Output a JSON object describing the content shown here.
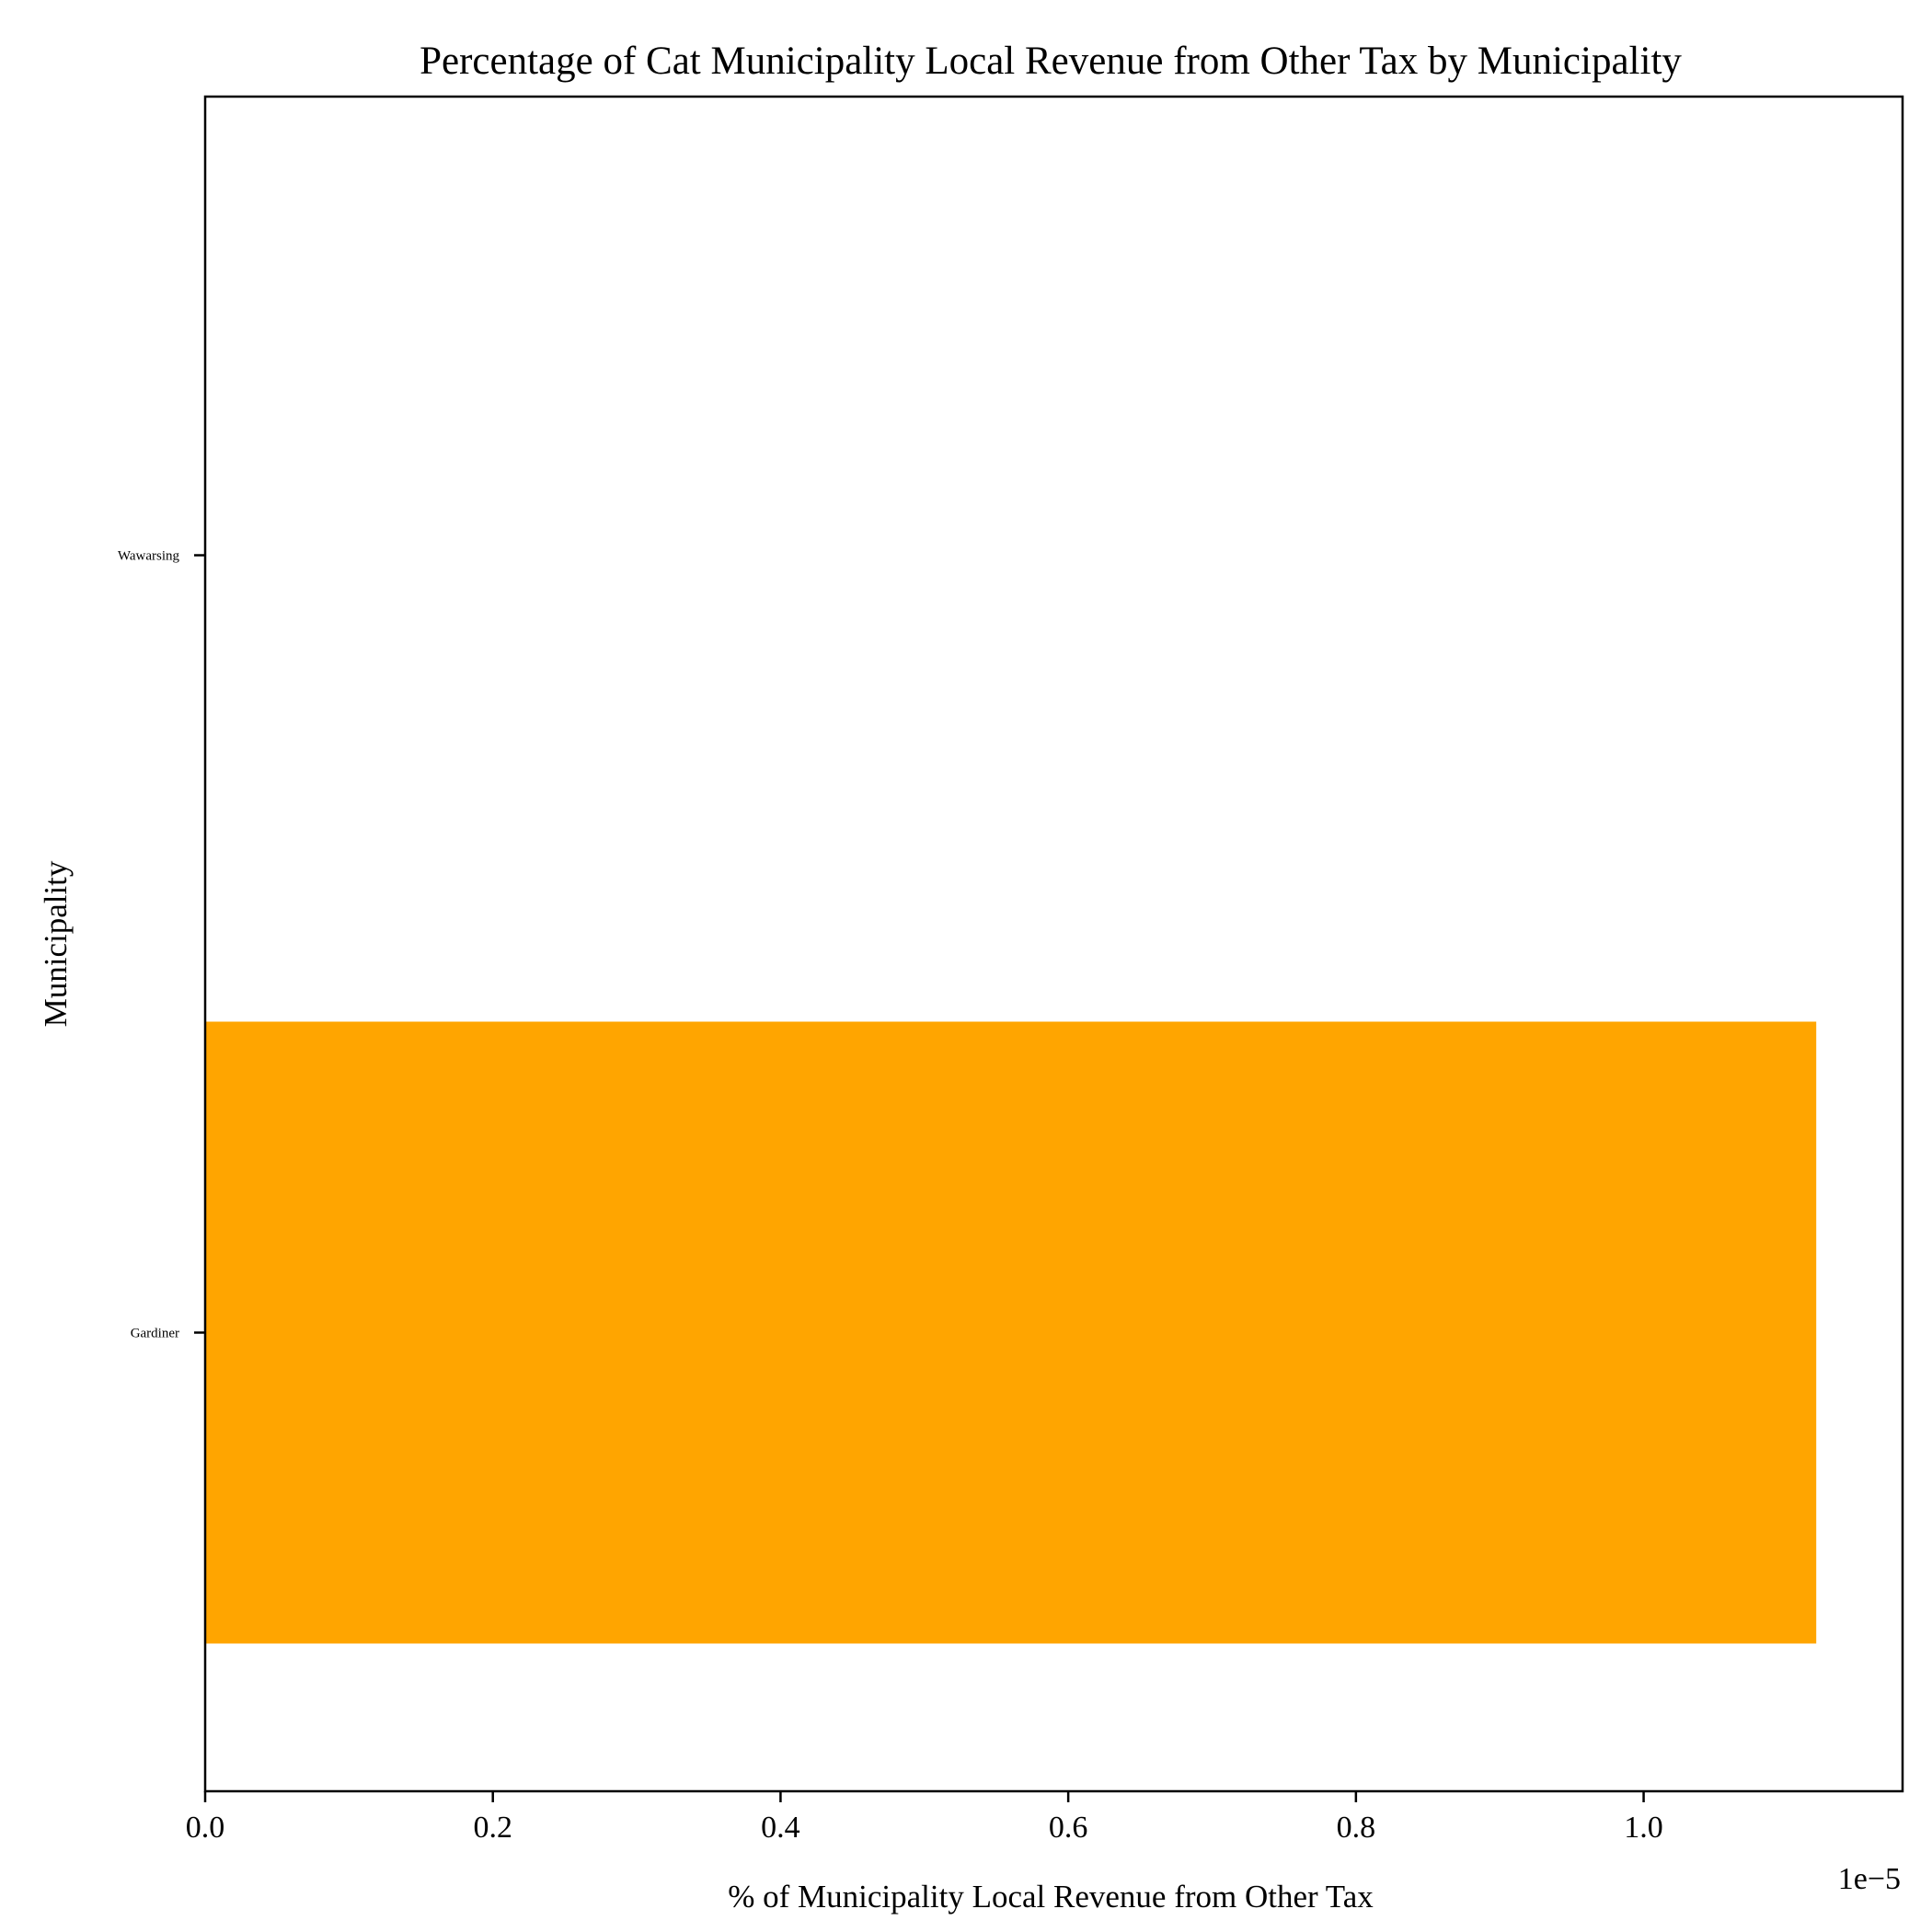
{
  "chart_data": {
    "type": "bar",
    "orientation": "horizontal",
    "title": "Percentage of Cat Municipality Local Revenue from Other Tax by Municipality",
    "xlabel": "% of Municipality Local Revenue from Other Tax",
    "ylabel": "Municipality",
    "categories": [
      "Gardiner",
      "Wawarsing"
    ],
    "values": [
      1.12e-05,
      0
    ],
    "xlim": [
      0,
      1.18e-05
    ],
    "x_ticks": [
      0,
      2e-06,
      4e-06,
      6e-06,
      8e-06,
      1e-05
    ],
    "x_tick_labels": [
      "0.0",
      "0.2",
      "0.4",
      "0.6",
      "0.8",
      "1.0"
    ],
    "x_offset_label": "1e−5",
    "bar_color": "#FFA500",
    "grid": false,
    "legend": "none"
  }
}
